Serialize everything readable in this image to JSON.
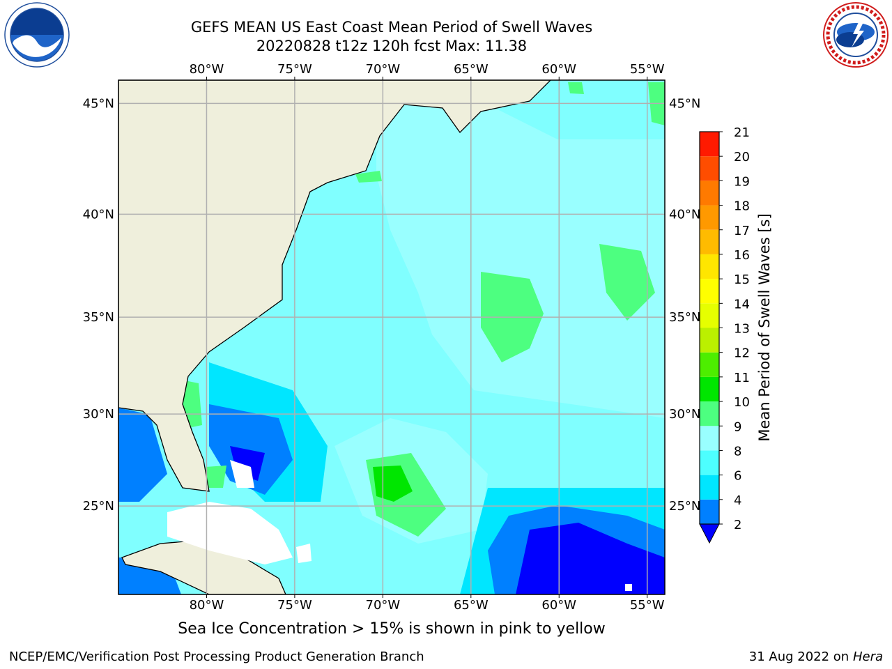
{
  "title_line1": "GEFS MEAN US East Coast Mean Period of Swell Waves",
  "title_line2": "20220828 t12z 120h fcst   Max: 11.38",
  "map": {
    "lon_labels": [
      "80°W",
      "75°W",
      "70°W",
      "65°W",
      "60°W",
      "55°W"
    ],
    "lat_labels": [
      "45°N",
      "40°N",
      "35°N",
      "30°N",
      "25°N"
    ],
    "lon_range": [
      -85,
      -54
    ],
    "lat_range": [
      20,
      46
    ],
    "colors": {
      "ocean": "#80ffff",
      "land": "#efefdc",
      "grid": "#b0b0b0"
    }
  },
  "colorbar": {
    "label": "Mean Period of Swell Waves [s]",
    "levels": [
      2,
      4,
      6,
      8,
      9,
      10,
      11,
      12,
      13,
      14,
      15,
      16,
      17,
      18,
      19,
      20,
      21
    ],
    "colors": [
      "#0080ff",
      "#00e6ff",
      "#4dffff",
      "#99ffff",
      "#4dff80",
      "#00e600",
      "#4dee00",
      "#bbf000",
      "#e6ff00",
      "#ffff00",
      "#ffe600",
      "#ffbb00",
      "#ff9900",
      "#ff7a00",
      "#ff4d00",
      "#ff1a00"
    ],
    "under_color": "#0000ff"
  },
  "note": "Sea Ice Concentration > 15% is shown in pink to yellow",
  "footer_left": "NCEP/EMC/Verification Post Processing Product Generation Branch",
  "footer_date": "31 Aug 2022",
  "footer_on": "on",
  "footer_machine": "Hera"
}
